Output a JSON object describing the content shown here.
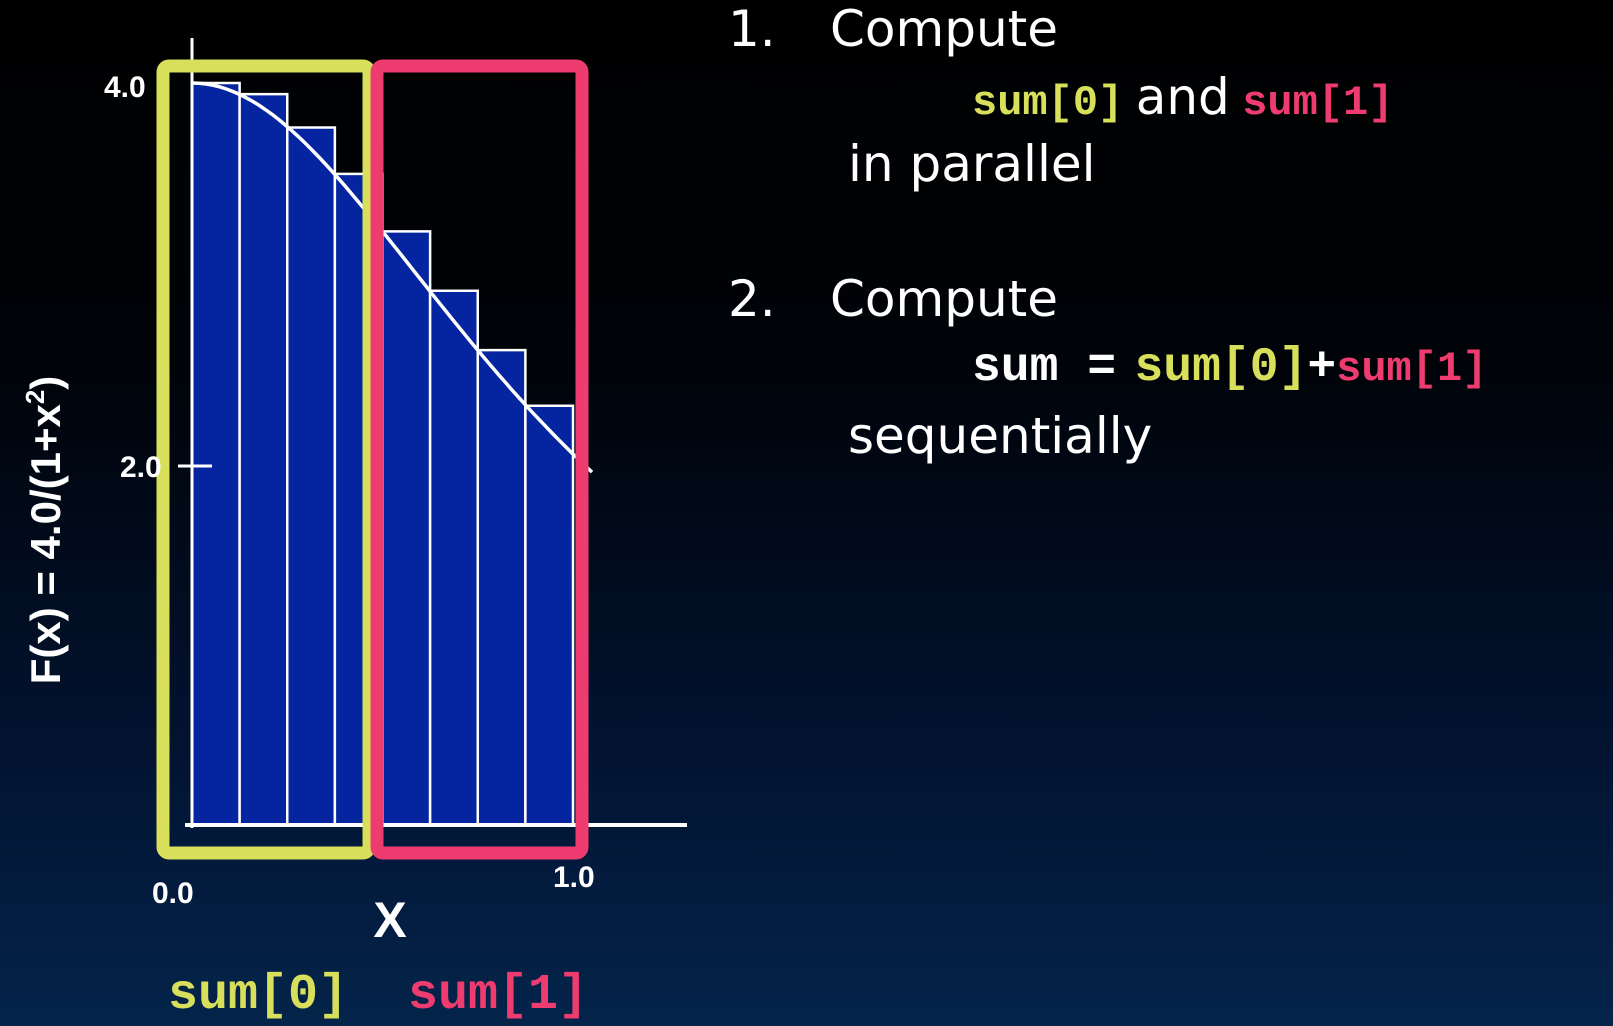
{
  "chart": {
    "y_axis_label": "F(x) = 4.0/(1+x",
    "y_axis_label_sup": "2",
    "y_axis_label_end": ")",
    "x_axis_label": "X",
    "y_ticks": [
      "4.0",
      "2.0"
    ],
    "x_ticks": [
      "0.0",
      "1.0"
    ],
    "group_labels": [
      "sum[0]",
      "sum[1]"
    ]
  },
  "chart_data": {
    "type": "bar",
    "title": "",
    "xlabel": "X",
    "ylabel": "F(x) = 4.0/(1+x²)",
    "xlim": [
      0.0,
      1.0
    ],
    "ylim": [
      0.0,
      4.0
    ],
    "categories": [
      "0.0",
      "0.125",
      "0.25",
      "0.375",
      "0.5",
      "0.625",
      "0.75",
      "0.875"
    ],
    "values": [
      4.0,
      3.94,
      3.76,
      3.51,
      3.2,
      2.88,
      2.56,
      2.26
    ],
    "curve": "F(x) = 4.0/(1+x^2)",
    "groups": [
      {
        "name": "sum[0]",
        "color": "#d8df5b",
        "bars": [
          0,
          1,
          2,
          3
        ]
      },
      {
        "name": "sum[1]",
        "color": "#ef3c70",
        "bars": [
          4,
          5,
          6,
          7
        ]
      }
    ],
    "bar_color": "#0424a0",
    "grid": false
  },
  "steps": [
    {
      "number": "1.",
      "heading": "Compute",
      "expr_a": "sum[0]",
      "expr_and": "and",
      "expr_b": "sum[1]",
      "tail": "in parallel"
    },
    {
      "number": "2.",
      "heading": "Compute",
      "expr_lhs": "sum =",
      "expr_a": "sum[0]",
      "expr_plus": "+",
      "expr_b": "sum[1]",
      "tail": "sequentially"
    }
  ],
  "colors": {
    "group0": "#d8df5b",
    "group1": "#ef3c70",
    "bar_fill": "#0424a0",
    "text": "#ffffff"
  }
}
